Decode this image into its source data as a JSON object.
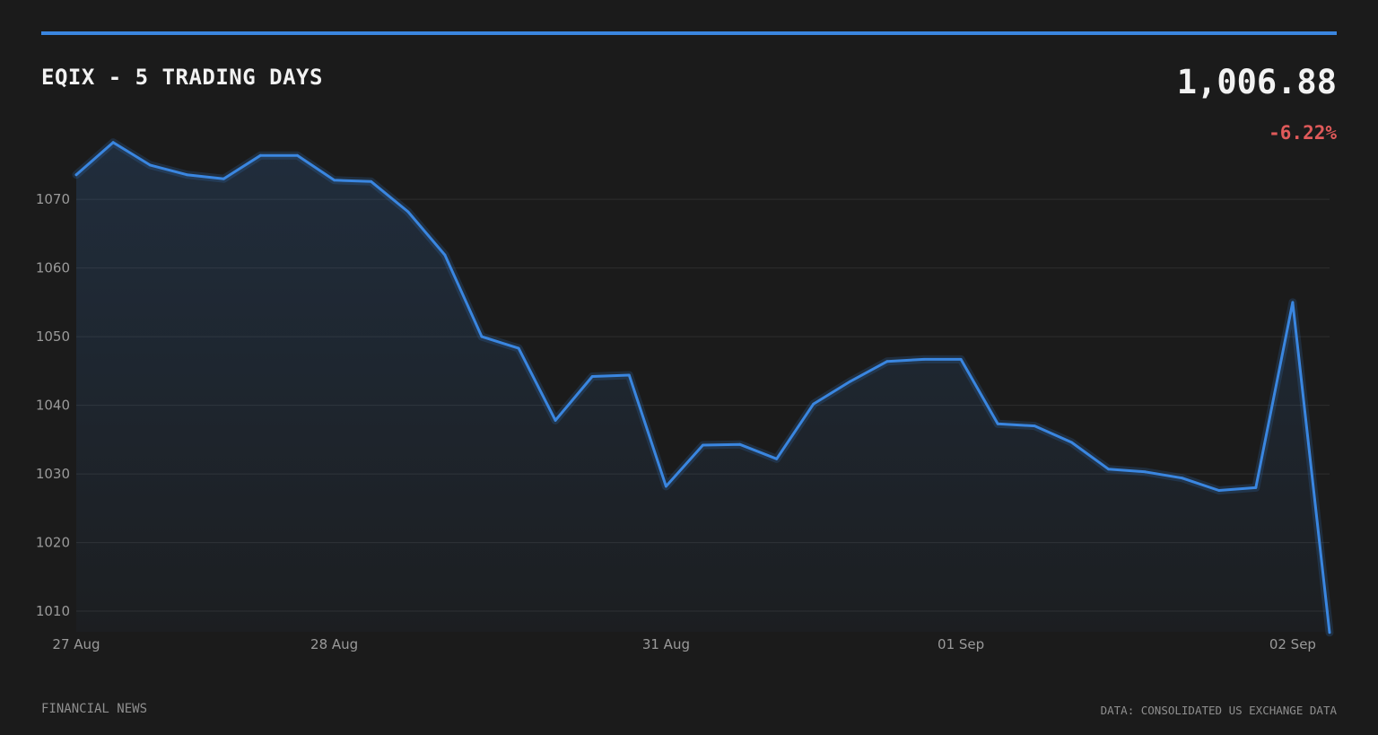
{
  "header": {
    "title": "EQIX - 5 TRADING DAYS",
    "price": "1,006.88",
    "change": "-6.22%"
  },
  "footer": {
    "source_left": "FINANCIAL NEWS",
    "source_right": "DATA: CONSOLIDATED US EXCHANGE DATA"
  },
  "colors": {
    "accent": "#3a86e0",
    "negative": "#e05a5a",
    "background": "#1b1b1b"
  },
  "chart_data": {
    "type": "area",
    "title": "EQIX - 5 TRADING DAYS",
    "xlabel": "",
    "ylabel": "",
    "ylim": [
      1007,
      1078
    ],
    "yticks": [
      1010,
      1020,
      1030,
      1040,
      1050,
      1060,
      1070
    ],
    "xticks": [
      {
        "label": "27 Aug",
        "index": 0
      },
      {
        "label": "28 Aug",
        "index": 7
      },
      {
        "label": "31 Aug",
        "index": 16
      },
      {
        "label": "01 Sep",
        "index": 24
      },
      {
        "label": "02 Sep",
        "index": 33
      }
    ],
    "grid": true,
    "series": [
      {
        "values": [
          1073.6,
          1078.3,
          1075.0,
          1073.6,
          1073.0,
          1076.4,
          1076.4,
          1072.8,
          1072.6,
          1068.2,
          1061.9,
          1050.0,
          1048.3,
          1037.8,
          1044.2,
          1044.4,
          1028.2,
          1034.2,
          1034.3,
          1032.2,
          1040.2,
          1043.5,
          1046.4,
          1046.7,
          1046.7,
          1037.3,
          1037.0,
          1034.6,
          1030.7,
          1030.3,
          1029.4,
          1027.6,
          1028.0,
          1055.0,
          1006.9
        ]
      }
    ]
  }
}
